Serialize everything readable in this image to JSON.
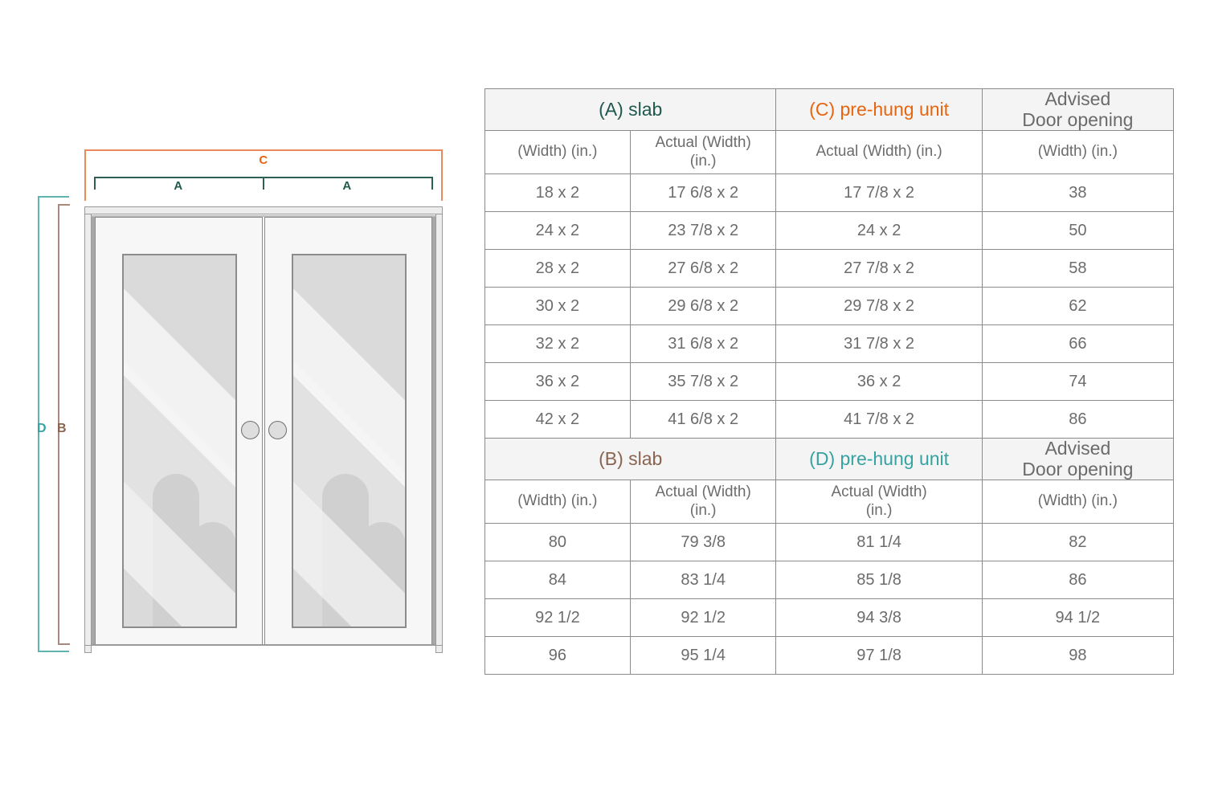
{
  "diagram": {
    "bracket_c_label": "C",
    "bracket_a_left_label": "A",
    "bracket_a_right_label": "A",
    "bracket_d_label": "D",
    "bracket_b_label": "B",
    "colors": {
      "slab_a_teal_dark": "#1f584d",
      "prehung_c_orange": "#e8650f",
      "slab_b_brown": "#8a6450",
      "prehung_d_teal": "#35a3a1",
      "bracket_c_line": "#ea8a5c",
      "bracket_a_line": "#2d6055",
      "bracket_d_line": "#5fb3b0",
      "bracket_b_line": "#a8897b"
    }
  },
  "table": {
    "sections": [
      {
        "header": [
          {
            "text": "(A) slab",
            "color": "#1f584d",
            "span": 2
          },
          {
            "text": "(C) pre-hung unit",
            "color": "#e8650f",
            "span": 1
          },
          {
            "text": "Advised\nDoor opening",
            "color": "#6b6b6b",
            "span": 1
          }
        ],
        "subheader": [
          "(Width) (in.)",
          "Actual (Width)\n(in.)",
          "Actual (Width) (in.)",
          "(Width) (in.)"
        ],
        "rows": [
          [
            "18 x 2",
            "17 6/8 x 2",
            "17 7/8 x 2",
            "38"
          ],
          [
            "24 x 2",
            "23 7/8 x 2",
            "24 x 2",
            "50"
          ],
          [
            "28 x 2",
            "27 6/8 x 2",
            "27 7/8 x 2",
            "58"
          ],
          [
            "30 x 2",
            "29 6/8 x 2",
            "29 7/8 x 2",
            "62"
          ],
          [
            "32 x 2",
            "31 6/8 x 2",
            "31 7/8 x 2",
            "66"
          ],
          [
            "36 x 2",
            "35 7/8 x 2",
            "36 x 2",
            "74"
          ],
          [
            "42 x 2",
            "41 6/8 x 2",
            "41 7/8 x 2",
            "86"
          ]
        ]
      },
      {
        "header": [
          {
            "text": "(B) slab",
            "color": "#8a6450",
            "span": 2
          },
          {
            "text": "(D) pre-hung unit",
            "color": "#35a3a1",
            "span": 1
          },
          {
            "text": "Advised\nDoor opening",
            "color": "#6b6b6b",
            "span": 1
          }
        ],
        "subheader": [
          "(Width) (in.)",
          "Actual (Width)\n(in.)",
          "Actual (Width)\n(in.)",
          "(Width) (in.)"
        ],
        "rows": [
          [
            "80",
            "79 3/8",
            "81 1/4",
            "82"
          ],
          [
            "84",
            "83 1/4",
            "85 1/8",
            "86"
          ],
          [
            "92 1/2",
            "92 1/2",
            "94 3/8",
            "94 1/2"
          ],
          [
            "96",
            "95 1/4",
            "97 1/8",
            "98"
          ]
        ]
      }
    ]
  }
}
